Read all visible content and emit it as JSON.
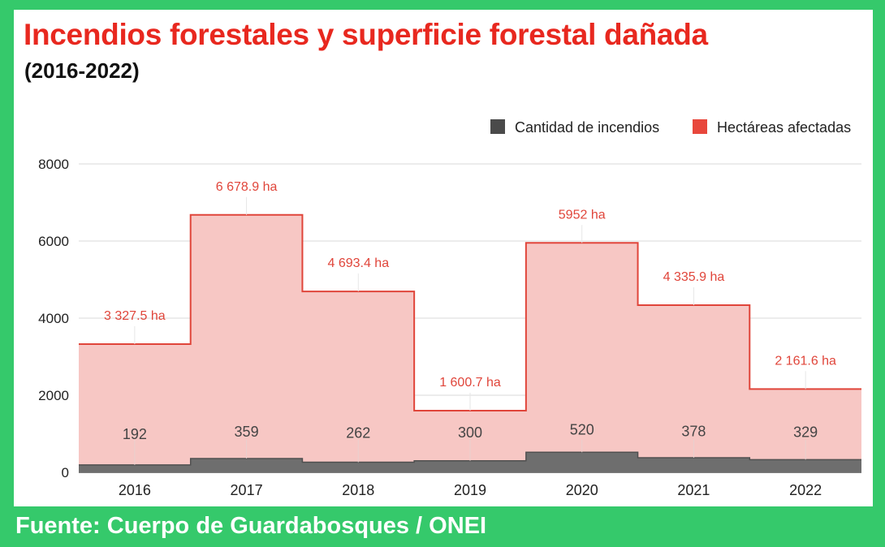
{
  "title": "Incendios forestales y superficie forestal dañada",
  "subtitle": "(2016-2022)",
  "source": "Fuente: Cuerpo de Guardabosques / ONEI",
  "colors": {
    "background": "#35c96b",
    "title": "#e8281f",
    "area_fill": "#f7c7c4",
    "area_line": "#e0453a",
    "count_fill": "#6e6e6e",
    "count_line": "#505050"
  },
  "chart_data": {
    "type": "area",
    "step": true,
    "categories": [
      "2016",
      "2017",
      "2018",
      "2019",
      "2020",
      "2021",
      "2022"
    ],
    "ylim": [
      0,
      8000
    ],
    "yticks": [
      0,
      2000,
      4000,
      6000,
      8000
    ],
    "grid": true,
    "legend_position": "top-right",
    "series": [
      {
        "name": "Cantidad de incendios",
        "color": "#4a4a4a",
        "values": [
          192,
          359,
          262,
          300,
          520,
          378,
          329
        ],
        "labels": [
          "192",
          "359",
          "262",
          "300",
          "520",
          "378",
          "329"
        ]
      },
      {
        "name": "Hectáreas afectadas",
        "color": "#e8473c",
        "values": [
          3327.5,
          6678.9,
          4693.4,
          1600.7,
          5952,
          4335.9,
          2161.6
        ],
        "labels": [
          "3 327.5 ha",
          "6 678.9 ha",
          "4 693.4 ha",
          "1 600.7 ha",
          "5952 ha",
          "4 335.9 ha",
          "2 161.6 ha"
        ]
      }
    ]
  }
}
